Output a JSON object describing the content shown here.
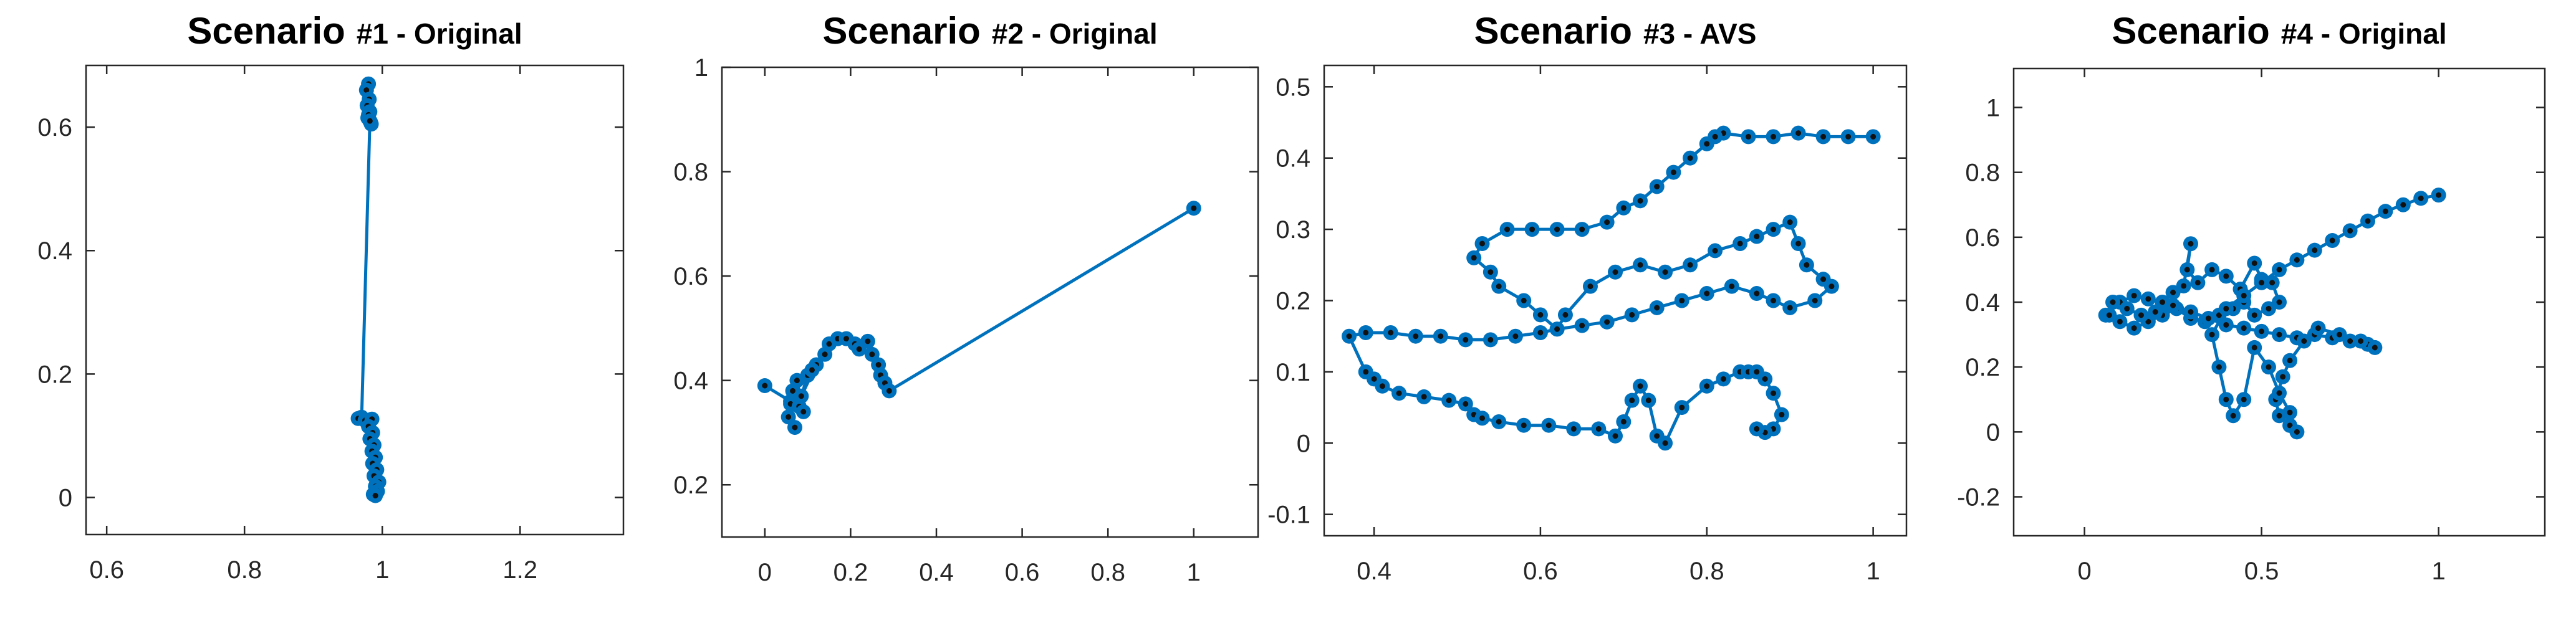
{
  "chart_data": [
    {
      "type": "line",
      "title": "Scenario",
      "title_suffix": "#1 - Original",
      "xlabel": "",
      "ylabel": "",
      "xlim": [
        0.57,
        1.35
      ],
      "ylim": [
        -0.06,
        0.7
      ],
      "xticks": [
        "0.6",
        "0.8",
        "1",
        "1.2"
      ],
      "yticks": [
        "0",
        "0.2",
        "0.4",
        "0.6"
      ],
      "xtick_values": [
        0.6,
        0.8,
        1,
        1.2
      ],
      "ytick_values": [
        0,
        0.2,
        0.4,
        0.6
      ],
      "color": "#0072BD",
      "marker_color": "#0072BD",
      "series": [
        {
          "x": [
            0.98,
            0.977,
            0.981,
            0.978,
            0.982,
            0.979,
            0.983,
            0.98,
            0.984,
            0.982,
            0.97,
            0.965,
            0.975,
            0.985,
            0.98,
            0.986,
            0.982,
            0.988,
            0.985,
            0.99,
            0.986,
            0.992,
            0.988,
            0.995,
            0.99,
            0.993,
            0.987,
            0.99
          ],
          "y": [
            0.67,
            0.66,
            0.645,
            0.635,
            0.625,
            0.615,
            0.608,
            0.62,
            0.605,
            0.61,
            0.13,
            0.128,
            0.125,
            0.127,
            0.115,
            0.105,
            0.095,
            0.085,
            0.075,
            0.065,
            0.055,
            0.045,
            0.035,
            0.025,
            0.018,
            0.01,
            0.005,
            0.003
          ]
        }
      ]
    },
    {
      "type": "line",
      "title": "Scenario",
      "title_suffix": "#2 - Original",
      "xlabel": "",
      "ylabel": "",
      "xlim": [
        -0.1,
        1.15
      ],
      "ylim": [
        0.1,
        1.0
      ],
      "xticks": [
        "0",
        "0.2",
        "0.4",
        "0.6",
        "0.8",
        "1"
      ],
      "yticks": [
        "0.2",
        "0.4",
        "0.6",
        "0.8",
        "1"
      ],
      "xtick_values": [
        0,
        0.2,
        0.4,
        0.6,
        0.8,
        1
      ],
      "ytick_values": [
        0.2,
        0.4,
        0.6,
        0.8,
        1
      ],
      "color": "#0072BD",
      "marker_color": "#0072BD",
      "series": [
        {
          "x": [
            0.0,
            0.06,
            0.055,
            0.07,
            0.06,
            0.08,
            0.065,
            0.09,
            0.075,
            0.1,
            0.085,
            0.12,
            0.11,
            0.14,
            0.15,
            0.17,
            0.19,
            0.21,
            0.22,
            0.24,
            0.25,
            0.265,
            0.27,
            0.28,
            0.29,
            1.0
          ],
          "y": [
            0.39,
            0.36,
            0.33,
            0.31,
            0.355,
            0.35,
            0.38,
            0.34,
            0.4,
            0.41,
            0.37,
            0.43,
            0.42,
            0.45,
            0.47,
            0.48,
            0.48,
            0.47,
            0.46,
            0.475,
            0.45,
            0.43,
            0.41,
            0.395,
            0.38,
            0.73
          ]
        }
      ]
    },
    {
      "type": "line",
      "title": "Scenario",
      "title_suffix": "#3 - AVS",
      "xlabel": "",
      "ylabel": "",
      "xlim": [
        0.34,
        1.04
      ],
      "ylim": [
        -0.13,
        0.53
      ],
      "xticks": [
        "0.4",
        "0.6",
        "0.8",
        "1"
      ],
      "yticks": [
        "-0.1",
        "0",
        "0.1",
        "0.2",
        "0.3",
        "0.4",
        "0.5"
      ],
      "xtick_values": [
        0.4,
        0.6,
        0.8,
        1
      ],
      "ytick_values": [
        -0.1,
        0,
        0.1,
        0.2,
        0.3,
        0.4,
        0.5
      ],
      "color": "#0072BD",
      "marker_color": "#0072BD",
      "series": [
        {
          "x": [
            1.0,
            0.97,
            0.94,
            0.91,
            0.88,
            0.85,
            0.82,
            0.81,
            0.8,
            0.78,
            0.76,
            0.74,
            0.72,
            0.7,
            0.68,
            0.65,
            0.62,
            0.59,
            0.56,
            0.53,
            0.52,
            0.54,
            0.55,
            0.58,
            0.6,
            0.62,
            0.63,
            0.66,
            0.69,
            0.72,
            0.75,
            0.78,
            0.81,
            0.84,
            0.86,
            0.88,
            0.9,
            0.91,
            0.92,
            0.94,
            0.95,
            0.93,
            0.9,
            0.88,
            0.86,
            0.83,
            0.8,
            0.77,
            0.74,
            0.71,
            0.68,
            0.65,
            0.62,
            0.6,
            0.57,
            0.54,
            0.51,
            0.48,
            0.45,
            0.42,
            0.39,
            0.37,
            0.39,
            0.4,
            0.41,
            0.43,
            0.46,
            0.49,
            0.51,
            0.52,
            0.53,
            0.55,
            0.58,
            0.61,
            0.64,
            0.67,
            0.69,
            0.7,
            0.71,
            0.72,
            0.73,
            0.74,
            0.75,
            0.77,
            0.8,
            0.82,
            0.84,
            0.85,
            0.86,
            0.87,
            0.88,
            0.89,
            0.88,
            0.87,
            0.86
          ],
          "y": [
            0.43,
            0.43,
            0.43,
            0.435,
            0.43,
            0.43,
            0.435,
            0.43,
            0.42,
            0.4,
            0.38,
            0.36,
            0.34,
            0.33,
            0.31,
            0.3,
            0.3,
            0.3,
            0.3,
            0.28,
            0.26,
            0.24,
            0.22,
            0.2,
            0.18,
            0.16,
            0.18,
            0.22,
            0.24,
            0.25,
            0.24,
            0.25,
            0.27,
            0.28,
            0.29,
            0.3,
            0.31,
            0.28,
            0.25,
            0.23,
            0.22,
            0.2,
            0.19,
            0.2,
            0.21,
            0.22,
            0.21,
            0.2,
            0.19,
            0.18,
            0.17,
            0.165,
            0.16,
            0.155,
            0.15,
            0.145,
            0.145,
            0.15,
            0.15,
            0.155,
            0.155,
            0.15,
            0.1,
            0.09,
            0.08,
            0.07,
            0.065,
            0.06,
            0.055,
            0.04,
            0.035,
            0.03,
            0.025,
            0.025,
            0.02,
            0.02,
            0.01,
            0.03,
            0.06,
            0.08,
            0.06,
            0.01,
            0.0,
            0.05,
            0.08,
            0.09,
            0.1,
            0.1,
            0.1,
            0.09,
            0.07,
            0.04,
            0.02,
            0.015,
            0.02
          ]
        }
      ]
    },
    {
      "type": "line",
      "title": "Scenario",
      "title_suffix": "#4 - Original",
      "xlabel": "",
      "ylabel": "",
      "xlim": [
        -0.2,
        1.3
      ],
      "ylim": [
        -0.32,
        1.12
      ],
      "xticks": [
        "0",
        "0.5",
        "1"
      ],
      "yticks": [
        "-0.2",
        "0",
        "0.2",
        "0.4",
        "0.6",
        "0.8",
        "1"
      ],
      "xtick_values": [
        0,
        0.5,
        1
      ],
      "ytick_values": [
        -0.2,
        0,
        0.2,
        0.4,
        0.6,
        0.8,
        1
      ],
      "color": "#0072BD",
      "marker_color": "#0072BD",
      "series": [
        {
          "x": [
            0.06,
            0.1,
            0.14,
            0.18,
            0.22,
            0.25,
            0.28,
            0.3,
            0.29,
            0.32,
            0.36,
            0.4,
            0.44,
            0.48,
            0.5,
            0.53,
            0.55,
            0.52,
            0.48,
            0.45,
            0.42,
            0.38,
            0.34,
            0.3,
            0.26,
            0.22,
            0.18,
            0.14,
            0.1,
            0.07,
            0.08,
            0.12,
            0.16,
            0.2,
            0.25,
            0.3,
            0.35,
            0.4,
            0.45,
            0.5,
            0.55,
            0.6,
            0.65,
            0.7,
            0.75,
            0.8,
            0.82,
            0.78,
            0.72,
            0.66,
            0.62,
            0.58,
            0.56,
            0.54,
            0.55,
            0.58,
            0.6,
            0.58,
            0.55,
            0.52,
            0.48,
            0.45,
            0.42,
            0.4,
            0.38,
            0.36,
            0.4,
            0.45,
            0.5,
            0.55,
            0.6,
            0.65,
            0.7,
            0.75,
            0.8,
            0.85,
            0.9,
            0.95,
            1.0
          ],
          "y": [
            0.36,
            0.4,
            0.42,
            0.41,
            0.4,
            0.43,
            0.45,
            0.58,
            0.5,
            0.46,
            0.5,
            0.48,
            0.44,
            0.52,
            0.47,
            0.46,
            0.4,
            0.38,
            0.36,
            0.4,
            0.38,
            0.36,
            0.34,
            0.35,
            0.38,
            0.36,
            0.34,
            0.32,
            0.34,
            0.36,
            0.4,
            0.38,
            0.36,
            0.37,
            0.39,
            0.37,
            0.35,
            0.33,
            0.32,
            0.31,
            0.3,
            0.29,
            0.3,
            0.29,
            0.28,
            0.27,
            0.26,
            0.28,
            0.3,
            0.32,
            0.28,
            0.22,
            0.17,
            0.1,
            0.05,
            0.02,
            0.0,
            0.06,
            0.12,
            0.2,
            0.26,
            0.1,
            0.05,
            0.1,
            0.2,
            0.3,
            0.38,
            0.42,
            0.46,
            0.5,
            0.53,
            0.56,
            0.59,
            0.62,
            0.65,
            0.68,
            0.7,
            0.72,
            0.73
          ]
        }
      ]
    }
  ]
}
